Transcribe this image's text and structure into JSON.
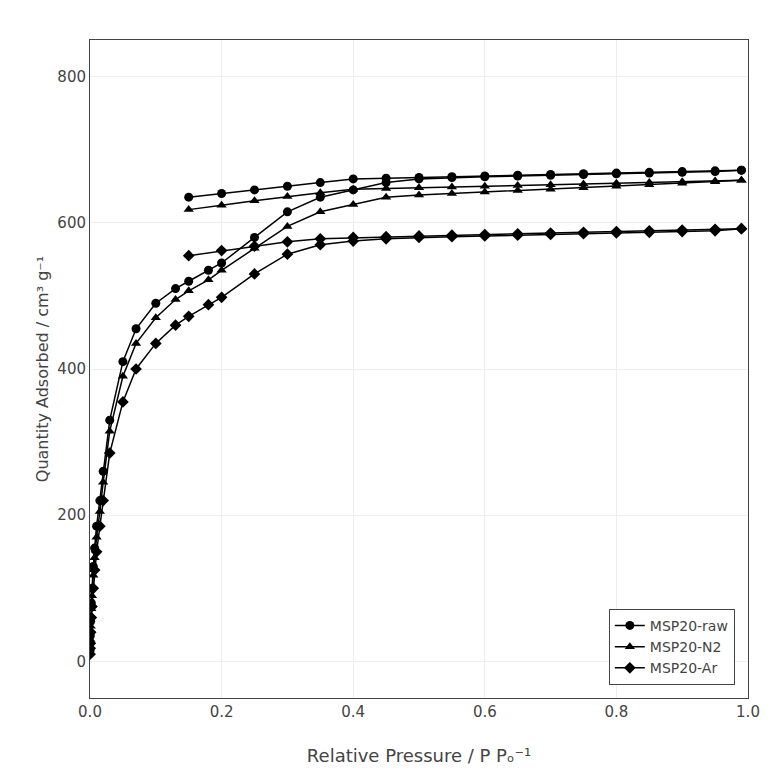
{
  "chart_data": {
    "type": "line",
    "xlabel": "Relative Pressure / P Pₒ⁻¹",
    "ylabel": "Quantity Adsorbed / cm³ g⁻¹",
    "xlim": [
      0.0,
      1.0
    ],
    "ylim": [
      -50,
      850
    ],
    "xticks": [
      {
        "value": 0.0,
        "label": "0.0"
      },
      0.2,
      0.4,
      0.6,
      0.8,
      {
        "value": 1.0,
        "label": "1.0"
      }
    ],
    "yticks": [
      0,
      200,
      400,
      600,
      800
    ],
    "grid": true,
    "legend": "lower right",
    "series": [
      {
        "name": "MSP20-raw",
        "color": "#000000",
        "marker": "circle",
        "x": [
          0.0001,
          0.0003,
          0.0005,
          0.001,
          0.002,
          0.003,
          0.005,
          0.007,
          0.01,
          0.015,
          0.02,
          0.03,
          0.05,
          0.07,
          0.1,
          0.13,
          0.15,
          0.18,
          0.2,
          0.25,
          0.3,
          0.35,
          0.4,
          0.45,
          0.5,
          0.55,
          0.6,
          0.65,
          0.7,
          0.75,
          0.8,
          0.85,
          0.9,
          0.95,
          0.99
        ],
        "values": [
          15,
          25,
          35,
          55,
          80,
          100,
          130,
          155,
          185,
          220,
          260,
          330,
          410,
          455,
          490,
          510,
          520,
          535,
          545,
          580,
          615,
          635,
          645,
          655,
          660,
          662,
          663,
          664,
          665,
          666,
          667,
          668,
          669,
          670,
          672
        ]
      },
      {
        "color": "#000000",
        "marker": "circle",
        "x": [
          0.99,
          0.95,
          0.9,
          0.85,
          0.8,
          0.75,
          0.7,
          0.65,
          0.6,
          0.55,
          0.5,
          0.45,
          0.4,
          0.35,
          0.3,
          0.25,
          0.2,
          0.15
        ],
        "values": [
          672,
          671,
          670,
          669,
          668,
          667,
          666,
          665,
          664,
          663,
          662,
          661,
          660,
          655,
          650,
          645,
          640,
          635
        ]
      },
      {
        "name": "MSP20-N2",
        "color": "#000000",
        "marker": "triangle-up",
        "x": [
          0.0001,
          0.0003,
          0.0005,
          0.001,
          0.002,
          0.003,
          0.005,
          0.007,
          0.01,
          0.015,
          0.02,
          0.03,
          0.05,
          0.07,
          0.1,
          0.13,
          0.15,
          0.18,
          0.2,
          0.25,
          0.3,
          0.35,
          0.4,
          0.45,
          0.5,
          0.55,
          0.6,
          0.65,
          0.7,
          0.75,
          0.8,
          0.85,
          0.9,
          0.95,
          0.99
        ],
        "values": [
          12,
          20,
          30,
          48,
          72,
          90,
          118,
          142,
          170,
          205,
          245,
          315,
          390,
          435,
          470,
          495,
          507,
          522,
          535,
          565,
          595,
          615,
          625,
          635,
          638,
          640,
          642,
          644,
          646,
          648,
          650,
          652,
          654,
          656,
          658
        ]
      },
      {
        "color": "#000000",
        "marker": "triangle-up",
        "x": [
          0.99,
          0.95,
          0.9,
          0.85,
          0.8,
          0.75,
          0.7,
          0.65,
          0.6,
          0.55,
          0.5,
          0.45,
          0.4,
          0.35,
          0.3,
          0.25,
          0.2,
          0.15
        ],
        "values": [
          658,
          657,
          656,
          655,
          654,
          653,
          652,
          651,
          650,
          649,
          648,
          647,
          646,
          641,
          636,
          630,
          624,
          618
        ]
      },
      {
        "name": "MSP20-Ar",
        "color": "#000000",
        "marker": "diamond",
        "x": [
          0.0001,
          0.0003,
          0.0005,
          0.001,
          0.002,
          0.003,
          0.005,
          0.007,
          0.01,
          0.015,
          0.02,
          0.03,
          0.05,
          0.07,
          0.1,
          0.13,
          0.15,
          0.18,
          0.2,
          0.25,
          0.3,
          0.35,
          0.4,
          0.45,
          0.5,
          0.55,
          0.6,
          0.65,
          0.7,
          0.75,
          0.8,
          0.85,
          0.9,
          0.95,
          0.99
        ],
        "values": [
          10,
          18,
          25,
          40,
          60,
          75,
          100,
          125,
          150,
          185,
          220,
          285,
          355,
          400,
          435,
          460,
          472,
          488,
          498,
          530,
          557,
          570,
          575,
          578,
          580,
          581,
          582,
          583,
          584,
          585,
          586,
          587,
          588,
          589,
          592
        ]
      },
      {
        "color": "#000000",
        "marker": "diamond",
        "x": [
          0.99,
          0.95,
          0.9,
          0.85,
          0.8,
          0.75,
          0.7,
          0.65,
          0.6,
          0.55,
          0.5,
          0.45,
          0.4,
          0.35,
          0.3,
          0.25,
          0.2,
          0.15
        ],
        "values": [
          592,
          591,
          590,
          589,
          588,
          587,
          586,
          585,
          584,
          583,
          582,
          581,
          580,
          578,
          574,
          568,
          562,
          555
        ]
      }
    ]
  }
}
